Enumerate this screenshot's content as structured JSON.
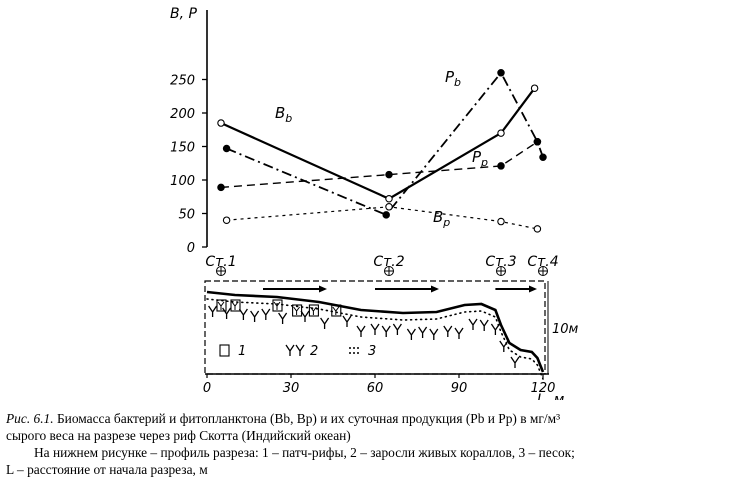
{
  "chart_data": [
    {
      "type": "line",
      "ylabel": "B, P",
      "ylim": [
        0,
        250
      ],
      "yticks": [
        0,
        50,
        100,
        150,
        200,
        250
      ],
      "stations": [
        {
          "label": "Ст.1",
          "x": 5
        },
        {
          "label": "Ст.2",
          "x": 65
        },
        {
          "label": "Ст.3",
          "x": 105
        },
        {
          "label": "Ст.4",
          "x": 120
        }
      ],
      "series": [
        {
          "name": "Bb",
          "style": "solid",
          "marker": "open",
          "x": [
            5,
            65,
            105,
            117
          ],
          "values": [
            185,
            72,
            170,
            237
          ]
        },
        {
          "name": "Pb",
          "style": "dashdot",
          "marker": "filled",
          "x": [
            7,
            64,
            105,
            118,
            120
          ],
          "values": [
            147,
            48,
            260,
            157,
            134
          ]
        },
        {
          "name": "Pp",
          "style": "dashed",
          "marker": "filled",
          "x": [
            5,
            65,
            105,
            118
          ],
          "values": [
            89,
            108,
            121,
            157
          ]
        },
        {
          "name": "Bp",
          "style": "dotted",
          "marker": "open",
          "x": [
            7,
            65,
            105,
            118
          ],
          "values": [
            40,
            60,
            38,
            27
          ]
        }
      ]
    },
    {
      "type": "area",
      "xlabel": "L, м",
      "xlim": [
        0,
        120
      ],
      "xticks": [
        0,
        30,
        60,
        90,
        120
      ],
      "depth_label": "10м",
      "legend": [
        {
          "num": "1",
          "text": "патч-рифы"
        },
        {
          "num": "2",
          "text": "заросли живых кораллов"
        },
        {
          "num": "3",
          "text": "песок"
        }
      ]
    }
  ],
  "caption": {
    "label": "Рис. 6.1.",
    "line1": "Биомасса бактерий и фитопланктона (Bb, Bp) и их суточная продукция (Pb и Pp) в мг/м³",
    "line2": "сырого веса на разрезе через риф Скотта (Индийский океан)",
    "line3": "На нижнем рисунке – профиль разреза: 1 – патч-рифы, 2 – заросли живых кораллов, 3 – песок;",
    "line4": "L – расстояние от начала разреза, м"
  }
}
